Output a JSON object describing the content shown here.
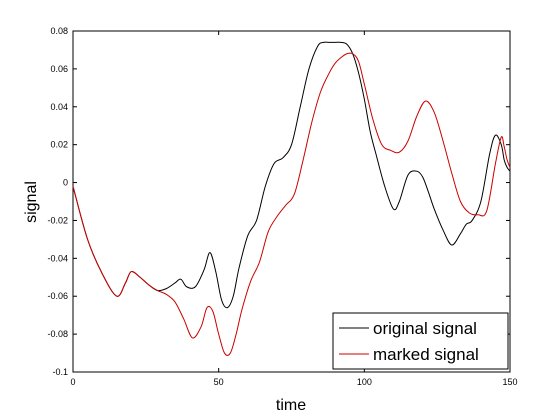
{
  "chart_data": {
    "type": "line",
    "title": "",
    "xlabel": "time",
    "ylabel": "signal",
    "xlim": [
      0,
      150
    ],
    "ylim": [
      -0.1,
      0.08
    ],
    "x_ticks": [
      0,
      50,
      100,
      150
    ],
    "x_tick_labels": [
      "0",
      "50",
      "100",
      "150"
    ],
    "y_ticks": [
      -0.1,
      -0.08,
      -0.06,
      -0.04,
      -0.02,
      0,
      0.02,
      0.04,
      0.06,
      0.08
    ],
    "y_tick_labels": [
      "-0.1",
      "-0.08",
      "-0.06",
      "-0.04",
      "-0.02",
      "0",
      "0.02",
      "0.04",
      "0.06",
      "0.08"
    ],
    "grid": false,
    "legend_position": "bottom-right",
    "series": [
      {
        "name": "original signal",
        "color": "#000000",
        "x": [
          0,
          5,
          10,
          15,
          18,
          20,
          23,
          26,
          29,
          32,
          35,
          37,
          39,
          42,
          45,
          47,
          49,
          51,
          53,
          55,
          57,
          60,
          63,
          66,
          69,
          72,
          75,
          78,
          81,
          84,
          86,
          88,
          90,
          92,
          94,
          96,
          98,
          100,
          102,
          104,
          107,
          110,
          112,
          115,
          118,
          120,
          122,
          124,
          127,
          130,
          133,
          135,
          137,
          140,
          143,
          145,
          147,
          148,
          149,
          150
        ],
        "y": [
          -0.002,
          -0.03,
          -0.048,
          -0.06,
          -0.053,
          -0.047,
          -0.05,
          -0.054,
          -0.057,
          -0.056,
          -0.053,
          -0.051,
          -0.055,
          -0.055,
          -0.046,
          -0.037,
          -0.047,
          -0.062,
          -0.066,
          -0.06,
          -0.045,
          -0.028,
          -0.02,
          -0.002,
          0.01,
          0.013,
          0.02,
          0.04,
          0.06,
          0.072,
          0.074,
          0.074,
          0.074,
          0.074,
          0.073,
          0.068,
          0.058,
          0.044,
          0.027,
          0.015,
          -0.002,
          -0.014,
          -0.01,
          0.004,
          0.006,
          0.003,
          -0.005,
          -0.014,
          -0.025,
          -0.033,
          -0.027,
          -0.022,
          -0.02,
          -0.01,
          0.015,
          0.025,
          0.02,
          0.012,
          0.008,
          0.006
        ]
      },
      {
        "name": "marked signal",
        "color": "#cc0000",
        "x": [
          0,
          5,
          10,
          15,
          18,
          20,
          23,
          26,
          29,
          32,
          35,
          38,
          41,
          44,
          46,
          48,
          50,
          52,
          54,
          56,
          58,
          61,
          64,
          67,
          70,
          73,
          76,
          79,
          82,
          85,
          88,
          90,
          92,
          94,
          96,
          98,
          100,
          103,
          106,
          109,
          112,
          115,
          118,
          121,
          124,
          127,
          130,
          133,
          136,
          139,
          142,
          145,
          147,
          148,
          149,
          150
        ],
        "y": [
          -0.002,
          -0.03,
          -0.048,
          -0.06,
          -0.053,
          -0.047,
          -0.05,
          -0.054,
          -0.057,
          -0.059,
          -0.063,
          -0.072,
          -0.082,
          -0.076,
          -0.066,
          -0.068,
          -0.08,
          -0.09,
          -0.09,
          -0.08,
          -0.067,
          -0.052,
          -0.042,
          -0.026,
          -0.018,
          -0.012,
          -0.006,
          0.012,
          0.032,
          0.048,
          0.058,
          0.063,
          0.066,
          0.068,
          0.068,
          0.064,
          0.052,
          0.033,
          0.02,
          0.017,
          0.016,
          0.022,
          0.035,
          0.043,
          0.037,
          0.022,
          0.005,
          -0.01,
          -0.016,
          -0.017,
          -0.015,
          0.01,
          0.024,
          0.019,
          0.012,
          0.008
        ]
      }
    ]
  }
}
